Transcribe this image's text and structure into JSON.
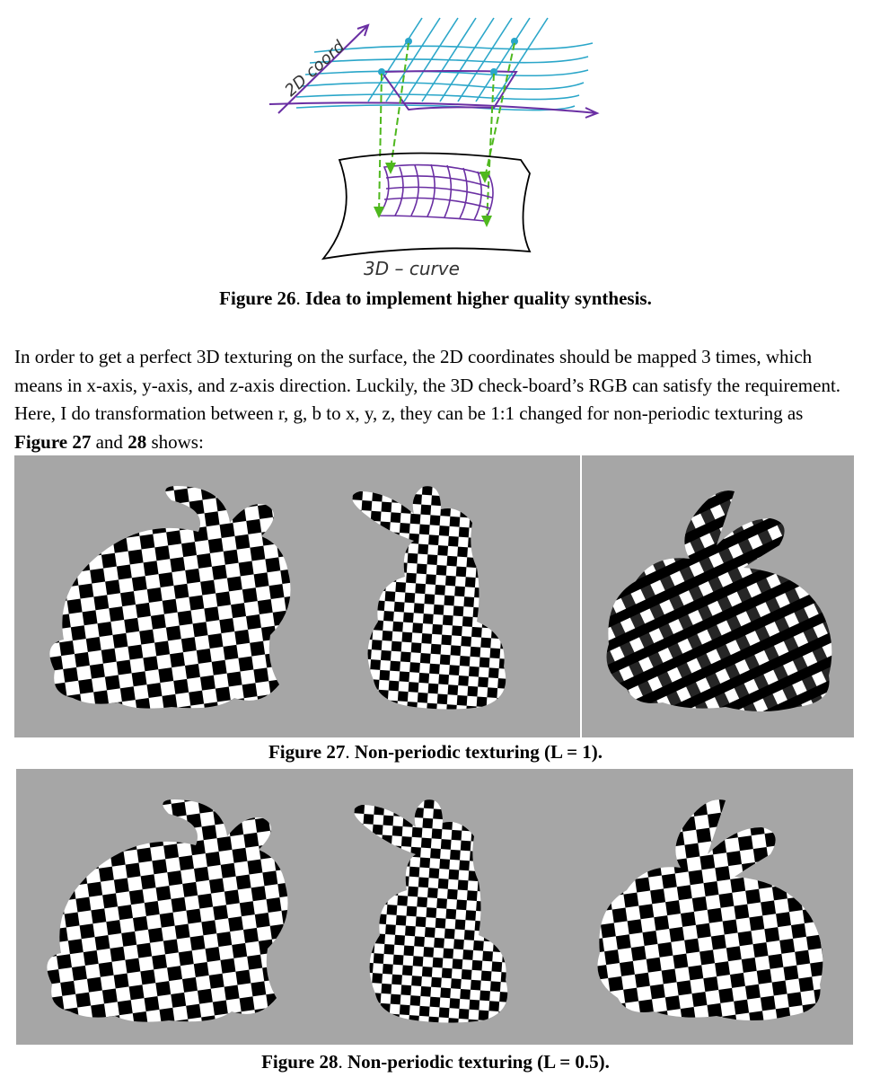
{
  "figure26": {
    "sketch_labels": {
      "top": "2D coord",
      "bottom": "3D – curve"
    },
    "caption": {
      "label": "Figure 26",
      "sep": ".",
      "text": " Idea to implement higher quality synthesis."
    }
  },
  "paragraph": {
    "before": "In order to get a perfect 3D texturing on the surface, the 2D coordinates should be mapped 3 times, which means in x-axis, y-axis, and z-axis direction. Luckily, the 3D check-board’s RGB can satisfy the requirement. Here, I do transformation between r, g, b to x, y, z, they can be 1:1 changed for non-periodic texturing as ",
    "ref1": "Figure 27",
    "and": " and ",
    "ref2": "28",
    "after": " shows:"
  },
  "figure27": {
    "caption": {
      "label": "Figure 27",
      "sep": ".",
      "text": " Non-periodic texturing (L = 1)."
    },
    "views": [
      "bunny-side-view",
      "bunny-front-view",
      "bunny-three-quarter-view"
    ]
  },
  "figure28": {
    "caption": {
      "label": "Figure 28",
      "sep": ".",
      "text": " Non-periodic texturing (L = 0.5)."
    },
    "views": [
      "bunny-side-view",
      "bunny-front-view",
      "bunny-three-quarter-view"
    ]
  },
  "colors": {
    "panel_bg": "#a6a6a6",
    "grid_blue": "#2aa6c9",
    "purple": "#6a2fa3",
    "green": "#4fb81e"
  }
}
